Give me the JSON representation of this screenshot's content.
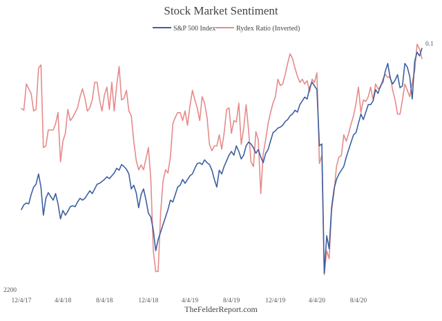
{
  "chart_data": {
    "type": "line",
    "title": "Stock Market Sentiment",
    "source": "TheFelderReport.com",
    "legend_position": "top-center",
    "x_tick_labels": [
      "12/4/17",
      "4/4/18",
      "8/4/18",
      "12/4/18",
      "4/4/19",
      "8/4/19",
      "12/4/19",
      "4/4/20",
      "8/4/20"
    ],
    "x_tick_index": [
      0,
      17,
      34,
      52,
      69,
      86,
      104,
      121,
      138
    ],
    "left_axis": {
      "label": "2200",
      "value": 2200
    },
    "right_axis": {
      "label": "0.1",
      "value": 0.1
    },
    "grid": false,
    "series": [
      {
        "name": "S&P 500 Index",
        "color": "#3b5fa0",
        "values": [
          2640,
          2665,
          2675,
          2670,
          2720,
          2760,
          2775,
          2830,
          2760,
          2610,
          2700,
          2730,
          2710,
          2690,
          2725,
          2670,
          2590,
          2635,
          2610,
          2630,
          2655,
          2660,
          2655,
          2680,
          2700,
          2690,
          2700,
          2720,
          2740,
          2725,
          2750,
          2775,
          2780,
          2790,
          2800,
          2815,
          2805,
          2820,
          2835,
          2860,
          2850,
          2880,
          2870,
          2855,
          2830,
          2750,
          2770,
          2730,
          2650,
          2720,
          2750,
          2690,
          2620,
          2600,
          2530,
          2420,
          2480,
          2520,
          2560,
          2600,
          2640,
          2690,
          2680,
          2720,
          2760,
          2770,
          2800,
          2780,
          2800,
          2820,
          2830,
          2860,
          2885,
          2890,
          2880,
          2905,
          2890,
          2880,
          2850,
          2800,
          2760,
          2850,
          2830,
          2870,
          2900,
          2930,
          2950,
          2930,
          2980,
          2950,
          2910,
          2930,
          2980,
          3000,
          2990,
          2970,
          2940,
          2960,
          2920,
          2890,
          2940,
          2960,
          3005,
          3050,
          3060,
          3075,
          3080,
          3090,
          3110,
          3120,
          3140,
          3150,
          3170,
          3160,
          3200,
          3220,
          3240,
          3230,
          3290,
          3320,
          3300,
          3280,
          2980,
          2990,
          2300,
          2500,
          2430,
          2650,
          2750,
          2800,
          2830,
          2850,
          2870,
          2920,
          2960,
          3000,
          3040,
          3050,
          3100,
          3150,
          3120,
          3160,
          3200,
          3200,
          3220,
          3280,
          3260,
          3300,
          3320,
          3380,
          3420,
          3340,
          3310,
          3330,
          3360,
          3290,
          3300,
          3420,
          3400,
          3350,
          3230,
          3430,
          3480,
          3460,
          3500
        ]
      },
      {
        "name": "Rydex Ratio (Inverted)",
        "color": "#e58a8a",
        "values": [
          0.455,
          0.465,
          0.3,
          0.33,
          0.36,
          0.47,
          0.46,
          0.2,
          0.18,
          0.7,
          0.69,
          0.59,
          0.59,
          0.59,
          0.55,
          0.48,
          0.79,
          0.66,
          0.61,
          0.46,
          0.53,
          0.51,
          0.48,
          0.45,
          0.38,
          0.33,
          0.39,
          0.47,
          0.45,
          0.4,
          0.29,
          0.29,
          0.4,
          0.47,
          0.37,
          0.32,
          0.46,
          0.29,
          0.47,
          0.31,
          0.19,
          0.4,
          0.39,
          0.34,
          0.47,
          0.5,
          0.66,
          0.78,
          0.84,
          0.81,
          0.84,
          0.77,
          0.7,
          0.9,
          1.35,
          1.48,
          1.48,
          1.11,
          0.91,
          0.84,
          0.86,
          0.76,
          0.55,
          0.51,
          0.48,
          0.48,
          0.53,
          0.47,
          0.56,
          0.44,
          0.34,
          0.4,
          0.45,
          0.53,
          0.38,
          0.42,
          0.51,
          0.68,
          0.72,
          0.69,
          0.69,
          0.62,
          0.71,
          0.61,
          0.46,
          0.45,
          0.61,
          0.53,
          0.54,
          0.42,
          0.68,
          0.58,
          0.43,
          0.59,
          0.79,
          0.82,
          0.6,
          0.65,
          0.99,
          0.74,
          0.65,
          0.55,
          0.48,
          0.42,
          0.38,
          0.27,
          0.31,
          0.3,
          0.24,
          0.17,
          0.11,
          0.14,
          0.2,
          0.25,
          0.29,
          0.27,
          0.3,
          0.28,
          0.35,
          0.27,
          0.29,
          0.23,
          0.8,
          0.75,
          1.5,
          1.35,
          1.4,
          1.1,
          0.98,
          0.82,
          0.76,
          0.75,
          0.62,
          0.66,
          0.61,
          0.55,
          0.5,
          0.42,
          0.32,
          0.48,
          0.4,
          0.41,
          0.38,
          0.32,
          0.4,
          0.3,
          0.33,
          0.32,
          0.27,
          0.24,
          0.26,
          0.25,
          0.34,
          0.4,
          0.49,
          0.49,
          0.4,
          0.3,
          0.34,
          0.38,
          0.29,
          0.22,
          0.05,
          0.08,
          0.14
        ]
      }
    ]
  }
}
